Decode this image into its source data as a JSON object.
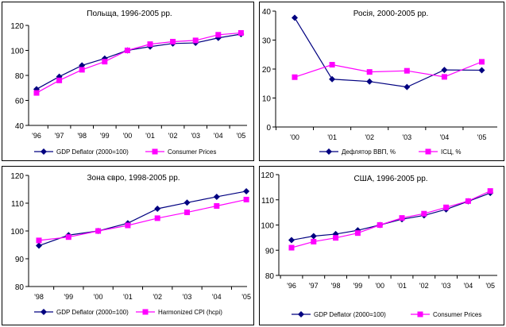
{
  "colors": {
    "gdp": "#000080",
    "cpi": "#ff00ff",
    "axis": "#000000"
  },
  "chart_data": [
    {
      "type": "line",
      "title": "Польща, 1996-2005 рр.",
      "categories": [
        "'96",
        "'97",
        "'98",
        "'99",
        "'00",
        "'01",
        "'02",
        "'03",
        "'04",
        "'05"
      ],
      "ylim": [
        40,
        120
      ],
      "yticks": [
        "40",
        "60",
        "80",
        "100",
        "120"
      ],
      "legend": "bottom",
      "grid": false,
      "series": [
        {
          "name": "GDP Deflator (2000=100)",
          "values": [
            69,
            79,
            88,
            93.5,
            100,
            103,
            105.5,
            106,
            110,
            113
          ],
          "marker": "diamond"
        },
        {
          "name": "Consumer Prices",
          "values": [
            66,
            76,
            84.5,
            91,
            100,
            105,
            107,
            108,
            112.5,
            114
          ],
          "marker": "square"
        }
      ]
    },
    {
      "type": "line",
      "title": "Росія, 2000-2005 рр.",
      "categories": [
        "'00",
        "'01",
        "'02",
        "'03",
        "'04",
        "'05"
      ],
      "ylim": [
        0,
        40
      ],
      "yticks": [
        "0",
        "10",
        "20",
        "30",
        "40"
      ],
      "legend": "bottom",
      "grid": false,
      "series": [
        {
          "name": "Дефлятор ВВП, %",
          "values": [
            37.7,
            16.5,
            15.7,
            13.8,
            19.7,
            19.6
          ],
          "marker": "diamond"
        },
        {
          "name": "ІСЦ, %",
          "values": [
            17.2,
            21.5,
            19.0,
            19.4,
            17.3,
            22.5
          ],
          "marker": "square"
        }
      ]
    },
    {
      "type": "line",
      "title": "Зона євро, 1998-2005 рр.",
      "categories": [
        "'98",
        "'99",
        "'00",
        "'01",
        "'02",
        "'03",
        "'04",
        "'05"
      ],
      "ylim": [
        80,
        120
      ],
      "yticks": [
        "80",
        "90",
        "100",
        "110",
        "120"
      ],
      "legend": "bottom",
      "grid": false,
      "series": [
        {
          "name": "GDP Deflator (2000=100)",
          "values": [
            94.7,
            98.5,
            100,
            102.8,
            108,
            110.2,
            112.3,
            114.3
          ],
          "marker": "diamond"
        },
        {
          "name": "Harmonized CPI (hcpi)",
          "values": [
            96.6,
            97.8,
            100,
            102,
            104.6,
            106.7,
            109,
            111.3
          ],
          "marker": "square"
        }
      ]
    },
    {
      "type": "line",
      "title": "США, 1996-2005 рр.",
      "categories": [
        "'96",
        "'97",
        "'98",
        "'99",
        "'00",
        "'01",
        "'02",
        "'03",
        "'04",
        "'05"
      ],
      "ylim": [
        80,
        120
      ],
      "yticks": [
        "80",
        "90",
        "100",
        "110",
        "120"
      ],
      "legend": "bottom",
      "grid": false,
      "series": [
        {
          "name": "GDP Deflator (2000=100)",
          "values": [
            94,
            95.6,
            96.4,
            97.9,
            100,
            102.3,
            103.8,
            106.2,
            109.4,
            112.7
          ],
          "marker": "diamond"
        },
        {
          "name": "Consumer Prices",
          "values": [
            91,
            93.4,
            94.9,
            96.8,
            100,
            102.8,
            104.5,
            107,
            109.5,
            113.5
          ],
          "marker": "square"
        }
      ]
    }
  ]
}
